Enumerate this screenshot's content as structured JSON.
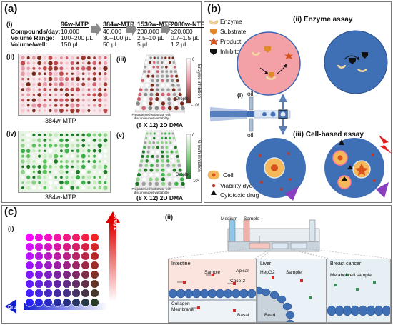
{
  "panel_a": {
    "label": "(a)",
    "row_i": "(i)",
    "row_headers": [
      "Compounds/day:",
      "Volume Range:",
      "Volume/well:"
    ],
    "formats": [
      {
        "name": "96w-MTP",
        "compounds": "10,000",
        "range": "100–200 µL",
        "per_well": "150 µL"
      },
      {
        "name": "384w-MTP",
        "compounds": "40,000",
        "range": "30–100 µL",
        "per_well": "50 µL"
      },
      {
        "name": "1536w-MTP",
        "compounds": "200,000",
        "range": "2.5–10 µL",
        "per_well": "5 µL"
      },
      {
        "name": "2080w-NTP",
        "compounds": "≥20,000",
        "range": "0.7–1.5 µL",
        "per_well": "1.2 µL"
      }
    ],
    "sub_ii": "(ii)",
    "sub_iii": "(iii)",
    "sub_iv": "(iv)",
    "sub_v": "(v)",
    "plate_label_top": "384w-MTP",
    "plate_label_bottom": "384w-MTP",
    "dma_label_top": "(8 X 12) 2D DMA",
    "dma_label_bottom": "(8 X 12) 2D DMA",
    "droplet": "Droplet",
    "substrate_caption": "Prepatterned substrate with discontinuous wettability",
    "scale_top": "0",
    "scale_bottom": "-10²",
    "enzyme_inhibition": "Enzyme inhibition",
    "growth_inhibition": "Growth inhibition",
    "colors": {
      "pink": "#e89aa6",
      "green": "#3cb34a",
      "brown": "#7a2a1a"
    }
  },
  "panel_b": {
    "label": "(b)",
    "legend": [
      "Enzyme",
      "Substrate",
      "Product",
      "Inhibitor"
    ],
    "enzyme_assay": "(ii) Enzyme assay",
    "sub_i": "(i)",
    "oil_top": "oil",
    "oil_bottom": "oil",
    "cell_assay": "(iii) Cell-based assay",
    "legend2": [
      "Cell",
      "Viability dye",
      "Cytotoxic drug"
    ],
    "colors": {
      "drop": "#3f6fb5",
      "pink": "#f3a1a7"
    }
  },
  "panel_c": {
    "label": "(c)",
    "sub_i": "(i)",
    "sub_ii": "(ii)",
    "drug1": "Drug 1",
    "drug2": "Drug 2",
    "medium": "Medium",
    "sample": "Sample",
    "intestine": "Intestine",
    "liver": "Liver",
    "breast": "Breast cancer",
    "apical": "Apical",
    "sample2": "Sample",
    "caco2": "Caco-2",
    "collagen": "Collagen",
    "membrane": "Membrane",
    "basal": "Basal",
    "hepg2": "HepG2",
    "sample3": "Sample",
    "bead": "Bead",
    "metabolized": "Metabolized sample"
  }
}
